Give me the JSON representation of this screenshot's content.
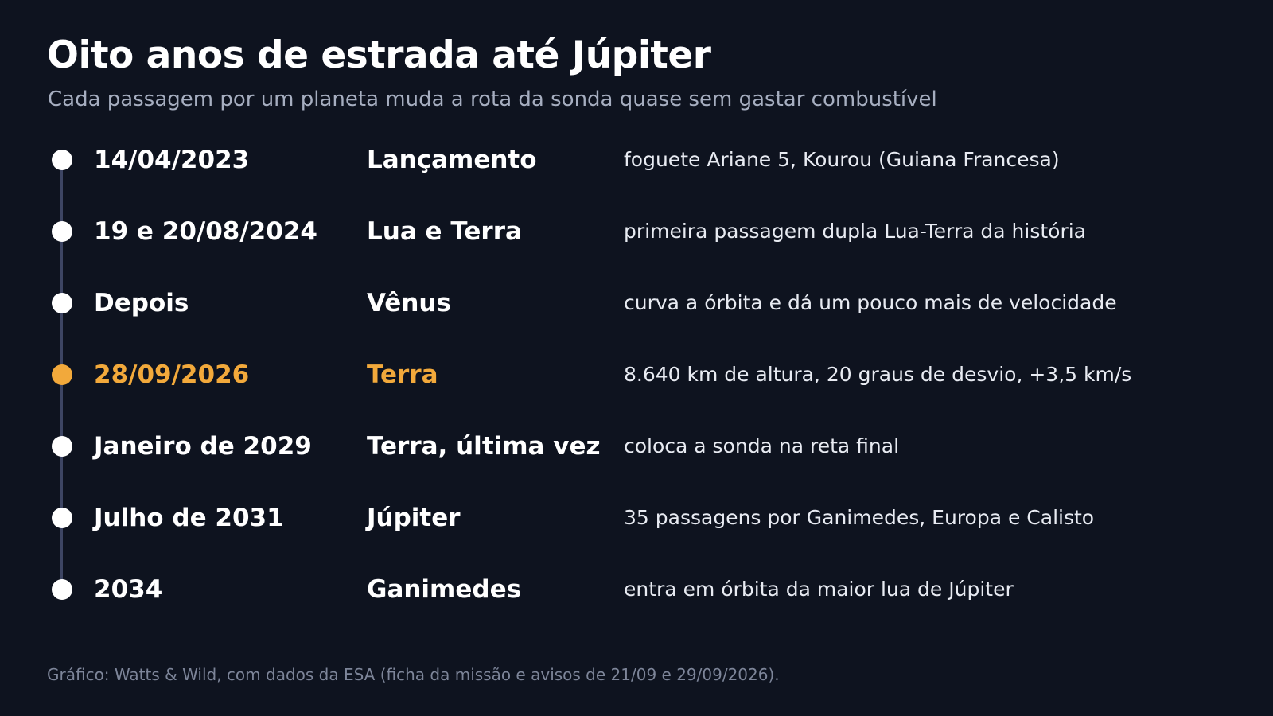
{
  "title": "Oito anos de estrada até Júpiter",
  "subtitle": "Cada passagem por um planeta muda a rota da sonda quase sem gastar combustível",
  "colors": {
    "background": "#0e131f",
    "highlight": "#f2a93b",
    "dot": "#ffffff",
    "line": "#3d4563"
  },
  "milestones": [
    {
      "date": "14/04/2023",
      "event": "Lançamento",
      "description": "foguete Ariane 5, Kourou (Guiana Francesa)",
      "highlight": false
    },
    {
      "date": "19 e 20/08/2024",
      "event": "Lua e Terra",
      "description": "primeira passagem dupla Lua-Terra da história",
      "highlight": false
    },
    {
      "date": "Depois",
      "event": "Vênus",
      "description": "curva a órbita e dá um pouco mais de velocidade",
      "highlight": false
    },
    {
      "date": "28/09/2026",
      "event": "Terra",
      "description": "8.640 km de altura, 20 graus de desvio, +3,5 km/s",
      "highlight": true
    },
    {
      "date": "Janeiro de 2029",
      "event": "Terra, última vez",
      "description": "coloca a sonda na reta final",
      "highlight": false
    },
    {
      "date": "Julho de 2031",
      "event": "Júpiter",
      "description": "35 passagens por Ganimedes, Europa e Calisto",
      "highlight": false
    },
    {
      "date": "2034",
      "event": "Ganimedes",
      "description": "entra em órbita da maior lua de Júpiter",
      "highlight": false
    }
  ],
  "footer": "Gráfico: Watts & Wild, com dados da ESA (ficha da missão e avisos de 21/09 e 29/09/2026)."
}
